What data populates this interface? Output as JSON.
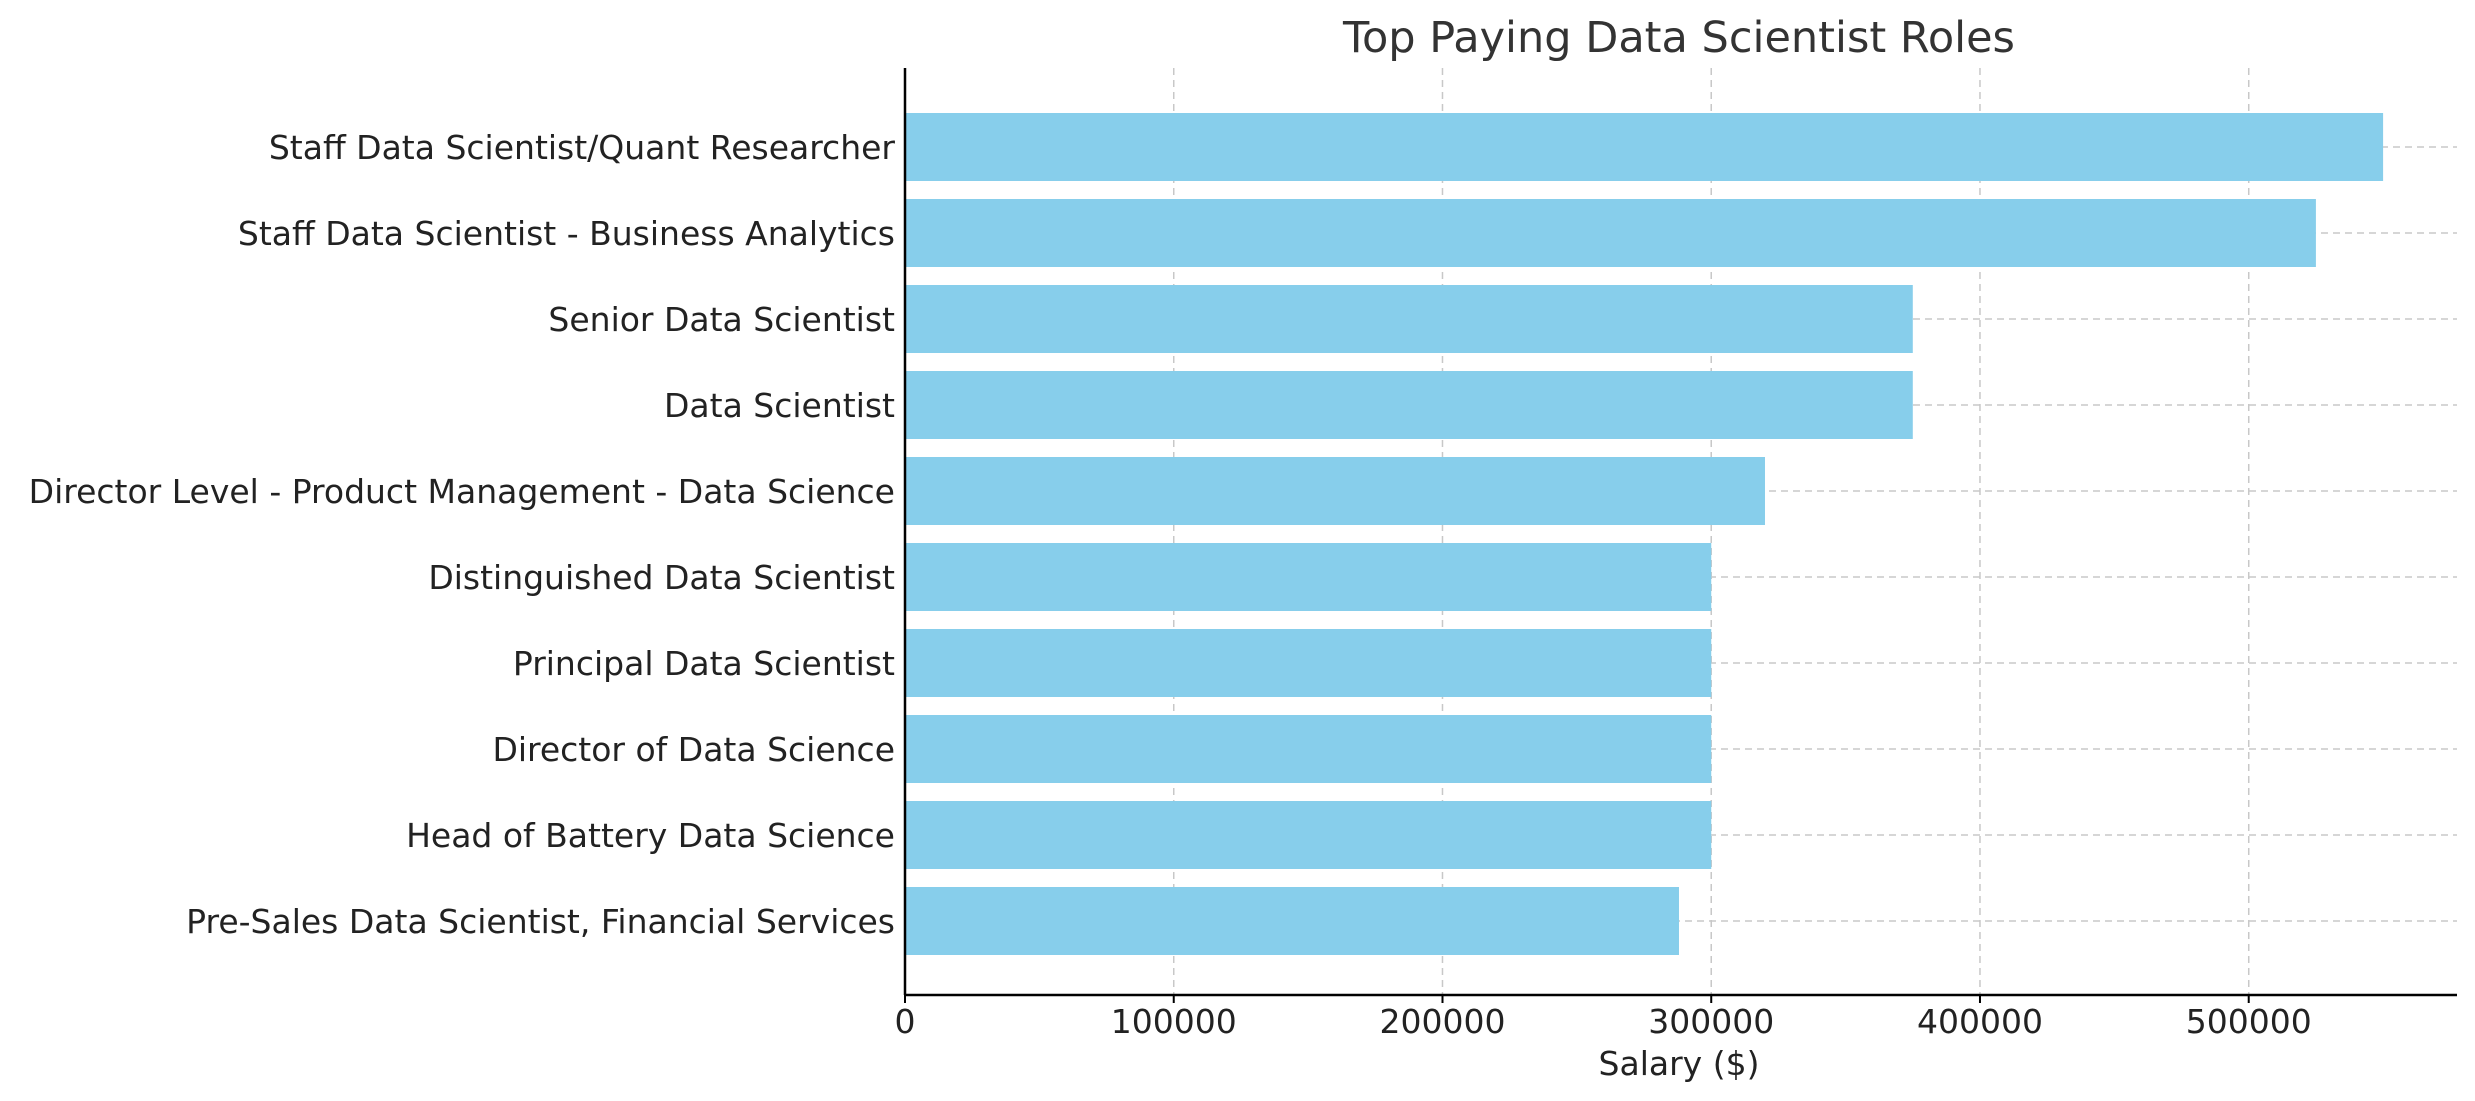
{
  "chart_data": {
    "type": "bar",
    "orientation": "horizontal",
    "title": "Top Paying Data Scientist Roles",
    "xlabel": "Salary ($)",
    "ylabel": "",
    "categories": [
      "Staff Data Scientist/Quant Researcher",
      "Staff Data Scientist - Business Analytics",
      "Senior Data Scientist",
      "Data Scientist",
      "Director Level - Product Management - Data Science",
      "Distinguished Data Scientist",
      "Principal Data Scientist",
      "Director of Data Science",
      "Head of Battery Data Science",
      "Pre-Sales Data Scientist, Financial Services"
    ],
    "values": [
      550000,
      525000,
      375000,
      375000,
      320000,
      300000,
      300000,
      300000,
      300000,
      288000
    ],
    "xlim": [
      0,
      577500
    ],
    "xticks": [
      0,
      100000,
      200000,
      300000,
      400000,
      500000
    ],
    "xtick_labels": [
      "0",
      "100000",
      "200000",
      "300000",
      "400000",
      "500000"
    ],
    "bar_color": "#87ceeb",
    "grid": true,
    "legend": "none"
  }
}
